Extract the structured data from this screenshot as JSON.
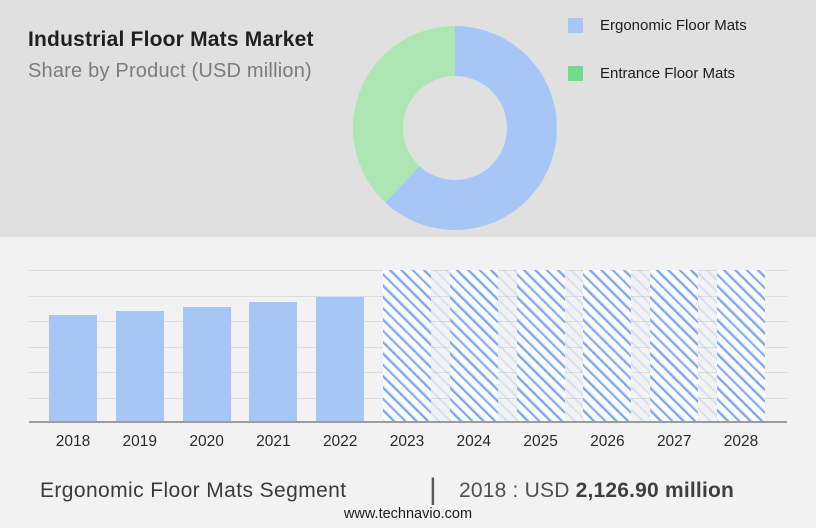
{
  "header": {
    "title": "Industrial Floor Mats Market",
    "subtitle": "Share by Product (USD million)"
  },
  "chart_data": [
    {
      "type": "pie",
      "donut": true,
      "start_angle_deg": 0,
      "inner_radius_ratio": 0.51,
      "slices": [
        {
          "label": "Ergonomic Floor Mats",
          "color": "#a6c7f6",
          "legend_color": "#a6c7f6",
          "sweep_deg": 223,
          "share_pct_est": 62
        },
        {
          "label": "Entrance Floor Mats",
          "color": "#ade6b1",
          "legend_color": "#6edc8b",
          "sweep_deg": 137,
          "share_pct_est": 38
        }
      ],
      "legend_position": "right"
    },
    {
      "type": "bar",
      "categories": [
        "2018",
        "2019",
        "2020",
        "2021",
        "2022",
        "2023",
        "2024",
        "2025",
        "2026",
        "2027",
        "2028"
      ],
      "series": [
        {
          "name": "Ergonomic Floor Mats",
          "values": [
            2126.9,
            2190,
            2270,
            2370,
            2475,
            null,
            null,
            null,
            null,
            null,
            null
          ]
        }
      ],
      "ylim": [
        0,
        3000
      ],
      "gridline_step": 500,
      "grid": "horizontal",
      "forecast_years": [
        "2023",
        "2024",
        "2025",
        "2026",
        "2027",
        "2028"
      ],
      "forecast_style": "hatched-full-height",
      "bar_color": "#a6c7f6",
      "hatch_line_color": "#7aa3ee",
      "grid_color": "#dcdcdc",
      "axis_color": "#9c9c9c",
      "legend_position": "none"
    }
  ],
  "footer": {
    "segment_label": "Ergonomic Floor Mats Segment",
    "separator": "|",
    "stat_prefix": "2018 : USD ",
    "stat_value": "2,126.90 million",
    "website": "www.technavio.com"
  }
}
